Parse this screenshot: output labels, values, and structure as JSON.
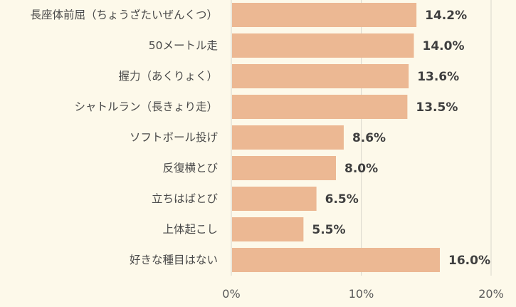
{
  "chart_data": {
    "type": "bar",
    "orientation": "horizontal",
    "categories": [
      "長座体前屈（ちょうざたいぜんくつ）",
      "50メートル走",
      "握力（あくりょく）",
      "シャトルラン（長きょり走）",
      "ソフトボール投げ",
      "反復横とび",
      "立ちはばとび",
      "上体起こし",
      "好きな種目はない"
    ],
    "values": [
      14.2,
      14.0,
      13.6,
      13.5,
      8.6,
      8.0,
      6.5,
      5.5,
      16.0
    ],
    "value_labels": [
      "14.2%",
      "14.0%",
      "13.6%",
      "13.5%",
      "8.6%",
      "8.0%",
      "6.5%",
      "5.5%",
      "16.0%"
    ],
    "xlim": [
      0,
      20
    ],
    "x_ticks": [
      0,
      10,
      20
    ],
    "x_tick_labels": [
      "0%",
      "10%",
      "20%"
    ],
    "grid": "vertical",
    "legend": "none",
    "colors": {
      "bar": "#ecb893",
      "background": "#fdf9ea",
      "grid": "#d9d6cc"
    }
  }
}
